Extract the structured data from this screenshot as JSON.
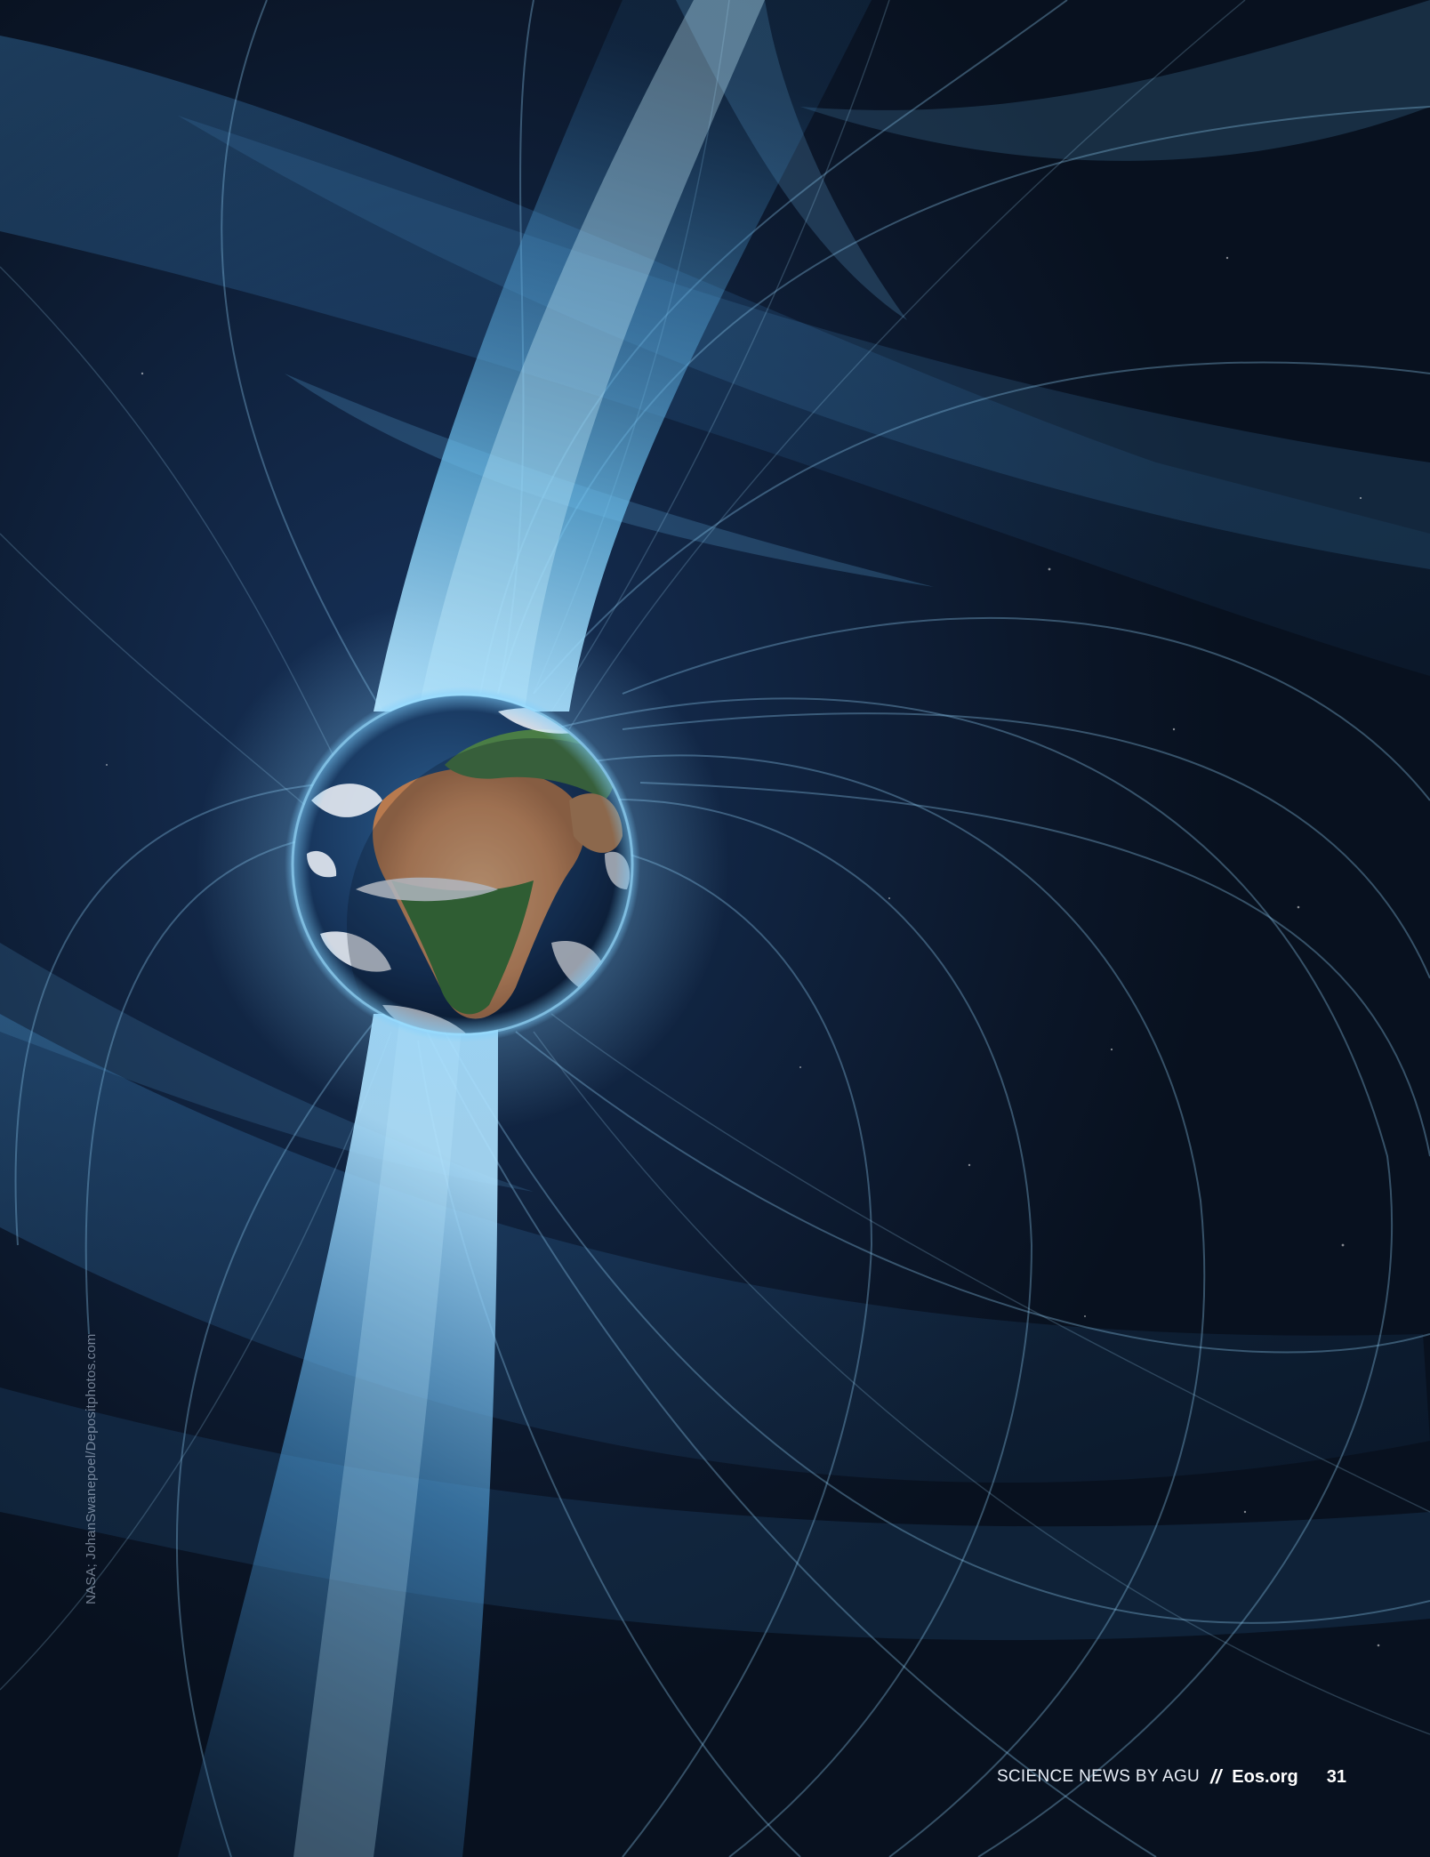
{
  "credit": "NASA; JohanSwanepoel/Depositphotos.com",
  "footer": {
    "publication": "SCIENCE NEWS BY AGU",
    "separator": "//",
    "site": "Eos.org",
    "page_number": "31"
  },
  "colors": {
    "space": "#0b1628",
    "field_light": "#6fc3f0",
    "field_glow": "#9fe0ff"
  },
  "illustration": {
    "subject": "earth-magnetic-field",
    "icon": "earth-globe-icon"
  }
}
